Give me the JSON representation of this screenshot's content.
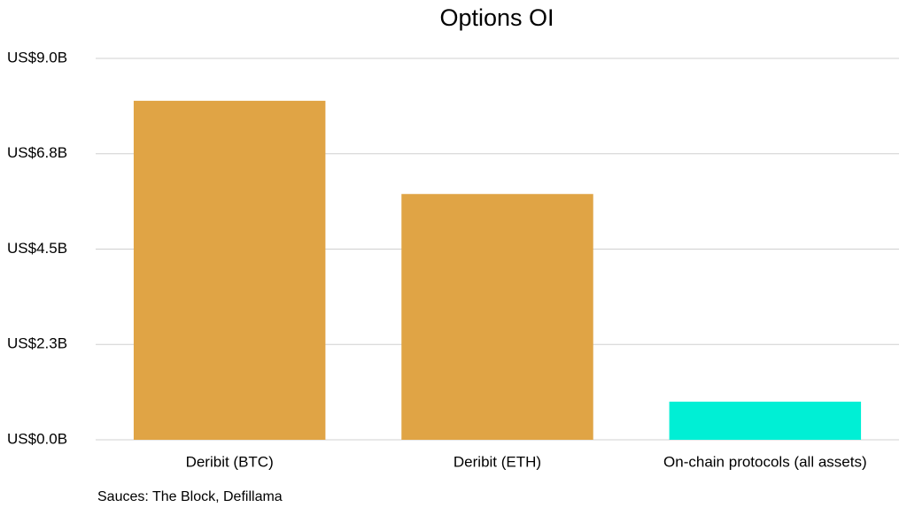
{
  "chart_data": {
    "type": "bar",
    "title": "Options OI",
    "categories": [
      "Deribit (BTC)",
      "Deribit (ETH)",
      "On-chain protocols (all assets)"
    ],
    "values": [
      8.0,
      5.8,
      0.9
    ],
    "colors": [
      "#e0a445",
      "#e0a445",
      "#00efd5"
    ],
    "ylim": [
      0,
      9
    ],
    "yticks": [
      {
        "value": 0,
        "label": "US$0.0B"
      },
      {
        "value": 2.25,
        "label": "US$2.3B"
      },
      {
        "value": 4.5,
        "label": "US$4.5B"
      },
      {
        "value": 6.75,
        "label": "US$6.8B"
      },
      {
        "value": 9,
        "label": "US$9.0B"
      }
    ],
    "grid": true,
    "source": "Sauces: The Block, Defillama"
  }
}
